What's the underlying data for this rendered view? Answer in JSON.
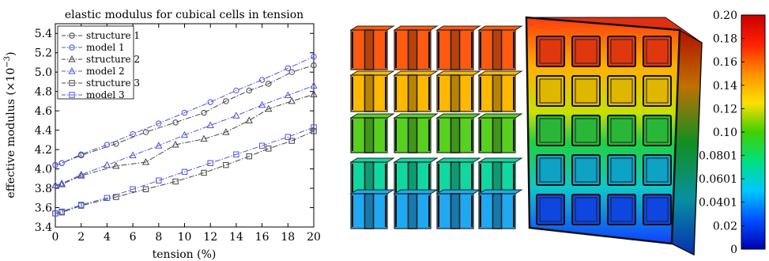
{
  "chart_data": [
    {
      "type": "line",
      "title": "elastic modulus for cubical cells in tension",
      "xlabel": "tension (%)",
      "ylabel": "effective modulus (×10",
      "ylabel_exp": "−3",
      "ylabel_close": ")",
      "xlim": [
        0,
        20
      ],
      "ylim": [
        3.4,
        5.5
      ],
      "xticks": [
        0,
        2,
        4,
        6,
        8,
        10,
        12,
        14,
        16,
        18,
        20
      ],
      "yticks": [
        3.4,
        3.6,
        3.8,
        4.0,
        4.2,
        4.4,
        4.6,
        4.8,
        5.0,
        5.2,
        5.4
      ],
      "ytick_labels": [
        "3.4",
        "3.6",
        "3.8",
        "4.0",
        "4.2",
        "4.4",
        "4.6",
        "4.8",
        "5.0",
        "5.2",
        "5.4"
      ],
      "grid": false,
      "legend_position": "top-left",
      "series": [
        {
          "name": "structure 1",
          "color": "#444444",
          "marker": "circle",
          "x": [
            0,
            0.5,
            2,
            4.7,
            7,
            9.3,
            11.5,
            13.2,
            15,
            16.5,
            18.3,
            20
          ],
          "y": [
            4.04,
            4.06,
            4.14,
            4.26,
            4.38,
            4.48,
            4.58,
            4.7,
            4.81,
            4.88,
            5.0,
            5.07
          ]
        },
        {
          "name": "model 1",
          "color": "#4a55e0",
          "marker": "circle",
          "x": [
            0,
            0.5,
            2,
            4,
            6,
            8,
            10,
            12,
            14,
            16,
            18,
            20
          ],
          "y": [
            4.04,
            4.06,
            4.15,
            4.25,
            4.36,
            4.47,
            4.58,
            4.69,
            4.81,
            4.92,
            5.04,
            5.16
          ]
        },
        {
          "name": "structure 2",
          "color": "#444444",
          "marker": "triangle",
          "x": [
            0,
            0.5,
            2,
            4.7,
            7,
            9.3,
            11.5,
            13.2,
            15,
            16.5,
            18.3,
            20
          ],
          "y": [
            3.83,
            3.84,
            3.93,
            4.03,
            4.07,
            4.25,
            4.31,
            4.38,
            4.5,
            4.62,
            4.7,
            4.77
          ]
        },
        {
          "name": "model 2",
          "color": "#4a55e0",
          "marker": "triangle",
          "x": [
            0,
            0.5,
            2,
            4,
            6,
            8,
            10,
            12,
            14,
            16,
            18,
            20
          ],
          "y": [
            3.83,
            3.85,
            3.94,
            4.04,
            4.14,
            4.24,
            4.35,
            4.45,
            4.55,
            4.66,
            4.76,
            4.86
          ]
        },
        {
          "name": "structure 3",
          "color": "#444444",
          "marker": "square",
          "x": [
            0,
            0.5,
            2,
            4.7,
            7,
            9.3,
            11.5,
            13.2,
            15,
            16.5,
            18.3,
            20
          ],
          "y": [
            3.54,
            3.55,
            3.62,
            3.71,
            3.79,
            3.87,
            3.96,
            4.04,
            4.13,
            4.21,
            4.29,
            4.39
          ]
        },
        {
          "name": "model 3",
          "color": "#4a55e0",
          "marker": "square",
          "x": [
            0,
            0.5,
            2,
            4,
            6,
            8,
            10,
            12,
            14,
            16,
            18,
            20
          ],
          "y": [
            3.54,
            3.56,
            3.63,
            3.7,
            3.79,
            3.88,
            3.97,
            4.06,
            4.15,
            4.24,
            4.33,
            4.43
          ]
        }
      ]
    },
    {
      "type": "colorbar",
      "range": [
        0,
        0.2
      ],
      "ticks": [
        0.2,
        0.18,
        0.16,
        0.14,
        0.12,
        0.1,
        0.0801,
        0.0601,
        0.0401,
        0.02,
        0
      ],
      "tick_labels": [
        "0.20",
        "0.18",
        "0.16",
        "0.14",
        "0.12",
        "0.10",
        "0.0801",
        "0.0601",
        "0.0401",
        "0.02",
        "0"
      ],
      "colormap": "jet",
      "colormap_stops": [
        "#0000b0",
        "#0050ff",
        "#00c8ff",
        "#00e080",
        "#40d000",
        "#ffe000",
        "#ff9000",
        "#ff2000",
        "#c80000"
      ]
    }
  ],
  "renders": {
    "separated_cells": {
      "rows": 5,
      "cols": 4,
      "row_colors": [
        "#ff5a10",
        "#ffb800",
        "#58d020",
        "#10d8a0",
        "#20a8f0"
      ]
    },
    "continuous_block": {
      "rows": 5,
      "cols": 4,
      "row_colors": [
        "#ff4010",
        "#ffd000",
        "#30d040",
        "#10b8e0",
        "#1050ff"
      ]
    }
  }
}
